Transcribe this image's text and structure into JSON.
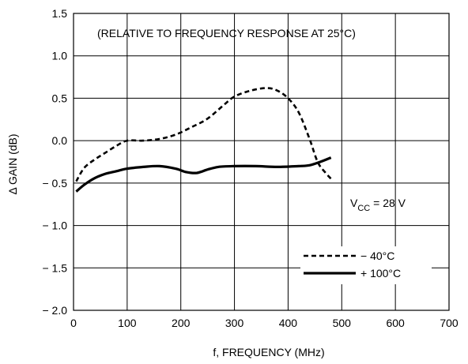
{
  "chart_data": {
    "type": "line",
    "title": "",
    "annotation": "(RELATIVE TO FREQUENCY RESPONSE AT 25°C)",
    "condition": {
      "prefix": "V",
      "subscript": "CC",
      "suffix": " = 28 V"
    },
    "xlabel": "f, FREQUENCY (MHz)",
    "ylabel": "Δ GAIN (dB)",
    "xlim": [
      0,
      700
    ],
    "ylim": [
      -2.0,
      1.5
    ],
    "xticks": [
      0,
      100,
      200,
      300,
      400,
      500,
      600,
      700
    ],
    "yticks": [
      1.5,
      1.0,
      0.5,
      0.0,
      -0.5,
      -1.0,
      -1.5,
      -2.0
    ],
    "xtick_labels": [
      "0",
      "100",
      "200",
      "300",
      "400",
      "500",
      "600",
      "700"
    ],
    "ytick_labels": [
      "1.5",
      "1.0",
      "0.5",
      "0.0",
      "− 0.5",
      "− 1.0",
      "− 1.5",
      "− 2.0"
    ],
    "grid": true,
    "legend_position": "bottom-right",
    "series": [
      {
        "name": "− 40°C",
        "style": "dashed",
        "x": [
          5,
          20,
          40,
          60,
          80,
          100,
          130,
          160,
          190,
          220,
          250,
          280,
          300,
          330,
          360,
          380,
          400,
          420,
          440,
          455,
          470,
          480
        ],
        "y": [
          -0.48,
          -0.32,
          -0.22,
          -0.14,
          -0.06,
          0.0,
          0.0,
          0.02,
          0.07,
          0.16,
          0.26,
          0.42,
          0.52,
          0.59,
          0.62,
          0.59,
          0.5,
          0.33,
          0.02,
          -0.25,
          -0.38,
          -0.45
        ]
      },
      {
        "name": "+ 100°C",
        "style": "solid",
        "x": [
          5,
          20,
          40,
          60,
          80,
          100,
          130,
          160,
          190,
          210,
          230,
          250,
          270,
          300,
          340,
          380,
          420,
          440,
          460,
          480
        ],
        "y": [
          -0.6,
          -0.52,
          -0.44,
          -0.39,
          -0.36,
          -0.33,
          -0.31,
          -0.3,
          -0.33,
          -0.37,
          -0.38,
          -0.34,
          -0.31,
          -0.3,
          -0.3,
          -0.31,
          -0.3,
          -0.29,
          -0.25,
          -0.2
        ]
      }
    ]
  }
}
